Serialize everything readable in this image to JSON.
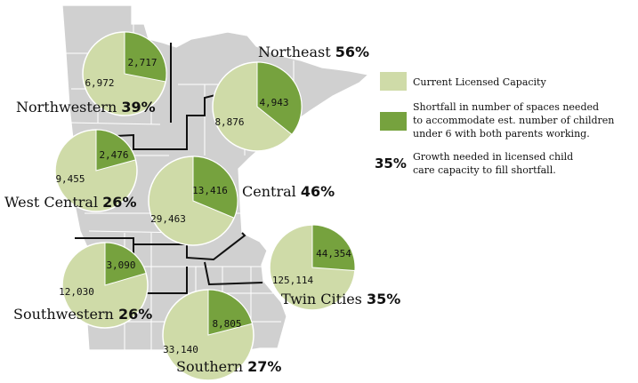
{
  "colors": {
    "capacity": "#cfdba8",
    "shortfall": "#76a23e",
    "map_fill": "#d0d0d0",
    "map_stroke": "#ffffff",
    "border": "#111111"
  },
  "legend": {
    "capacity_label": "Current Licensed Capacity",
    "shortfall_lines": [
      "Shortfall in number of spaces needed",
      "to accommodate est. number of children",
      "under 6 with both parents working."
    ],
    "growth_pct": "35%",
    "growth_lines": [
      "Growth needed in licensed child",
      "care capacity to fill shortfall."
    ]
  },
  "chart_data": {
    "type": "pie",
    "series_names": [
      "Current Licensed Capacity",
      "Shortfall"
    ],
    "regions": [
      {
        "name": "Northwestern",
        "pct": "39%",
        "capacity": 6972,
        "shortfall": 2717,
        "capacity_label": "6,972",
        "shortfall_label": "2,717"
      },
      {
        "name": "Northeast",
        "pct": "56%",
        "capacity": 8876,
        "shortfall": 4943,
        "capacity_label": "8,876",
        "shortfall_label": "4,943"
      },
      {
        "name": "West Central",
        "pct": "26%",
        "capacity": 9455,
        "shortfall": 2476,
        "capacity_label": "9,455",
        "shortfall_label": "2,476"
      },
      {
        "name": "Central",
        "pct": "46%",
        "capacity": 29463,
        "shortfall": 13416,
        "capacity_label": "29,463",
        "shortfall_label": "13,416"
      },
      {
        "name": "Twin Cities",
        "pct": "35%",
        "capacity": 125114,
        "shortfall": 44354,
        "capacity_label": "125,114",
        "shortfall_label": "44,354"
      },
      {
        "name": "Southwestern",
        "pct": "26%",
        "capacity": 12030,
        "shortfall": 3090,
        "capacity_label": "12,030",
        "shortfall_label": "3,090"
      },
      {
        "name": "Southern",
        "pct": "27%",
        "capacity": 33140,
        "shortfall": 8805,
        "capacity_label": "33,140",
        "shortfall_label": "8,805"
      }
    ]
  }
}
